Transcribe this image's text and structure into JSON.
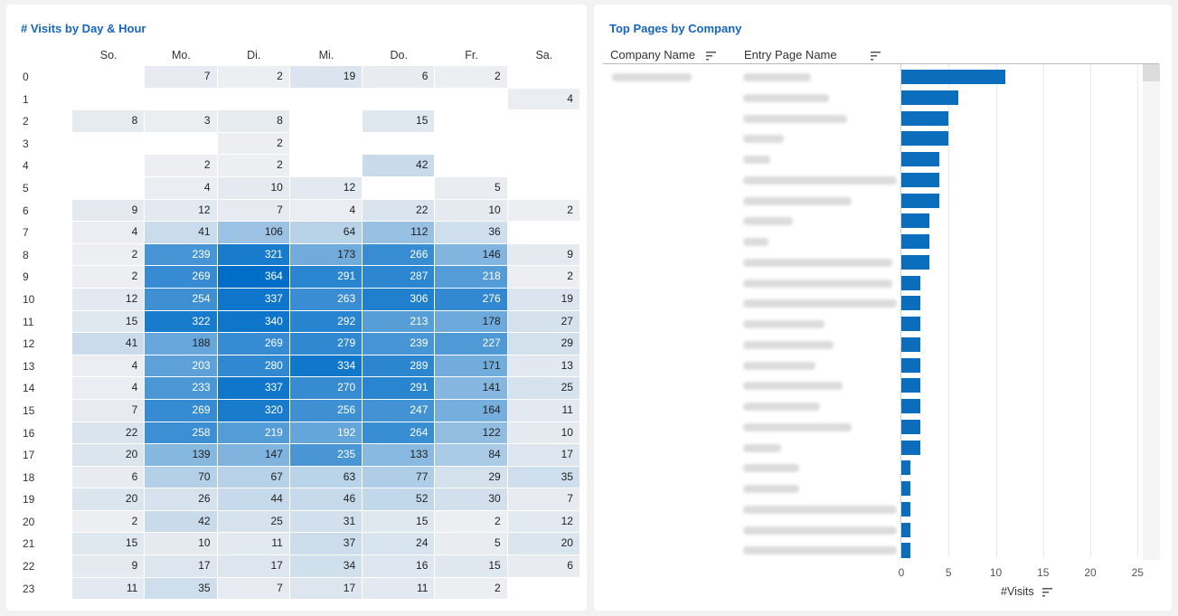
{
  "heatmap": {
    "title": "# Visits by Day & Hour",
    "days": [
      "So.",
      "Mo.",
      "Di.",
      "Mi.",
      "Do.",
      "Fr.",
      "Sa."
    ],
    "hours": [
      "0",
      "1",
      "2",
      "3",
      "4",
      "5",
      "6",
      "7",
      "8",
      "9",
      "10",
      "11",
      "12",
      "13",
      "14",
      "15",
      "16",
      "17",
      "18",
      "19",
      "20",
      "21",
      "22",
      "23"
    ],
    "values": [
      [
        null,
        7,
        2,
        19,
        6,
        2,
        null
      ],
      [
        null,
        null,
        null,
        null,
        null,
        null,
        4
      ],
      [
        8,
        3,
        8,
        null,
        15,
        null,
        null
      ],
      [
        null,
        null,
        2,
        null,
        null,
        null,
        null
      ],
      [
        null,
        2,
        2,
        null,
        42,
        null,
        null
      ],
      [
        null,
        4,
        10,
        12,
        null,
        5,
        null
      ],
      [
        9,
        12,
        7,
        4,
        22,
        10,
        2
      ],
      [
        4,
        41,
        106,
        64,
        112,
        36,
        null
      ],
      [
        2,
        239,
        321,
        173,
        266,
        146,
        9
      ],
      [
        2,
        269,
        364,
        291,
        287,
        218,
        2
      ],
      [
        12,
        254,
        337,
        263,
        306,
        276,
        19
      ],
      [
        15,
        322,
        340,
        292,
        213,
        178,
        27
      ],
      [
        41,
        188,
        269,
        279,
        239,
        227,
        29
      ],
      [
        4,
        203,
        280,
        334,
        289,
        171,
        13
      ],
      [
        4,
        233,
        337,
        270,
        291,
        141,
        25
      ],
      [
        7,
        269,
        320,
        256,
        247,
        164,
        11
      ],
      [
        22,
        258,
        219,
        192,
        264,
        122,
        10
      ],
      [
        20,
        139,
        147,
        235,
        133,
        84,
        17
      ],
      [
        6,
        70,
        67,
        63,
        77,
        29,
        35
      ],
      [
        20,
        26,
        44,
        46,
        52,
        30,
        7
      ],
      [
        2,
        42,
        25,
        31,
        15,
        2,
        12
      ],
      [
        15,
        10,
        11,
        37,
        24,
        5,
        20
      ],
      [
        9,
        17,
        17,
        34,
        16,
        15,
        6
      ],
      [
        11,
        35,
        7,
        17,
        11,
        2,
        null
      ]
    ]
  },
  "top_pages": {
    "title": "Top Pages by Company",
    "col_company": "Company Name",
    "col_entry": "Entry Page Name",
    "axis_label": "#Visits",
    "x_ticks": [
      "0",
      "5",
      "10",
      "15",
      "20",
      "25"
    ],
    "bar_color": "#0a6ebd",
    "visits": [
      11,
      6,
      5,
      5,
      4,
      4,
      4,
      3,
      3,
      3,
      2,
      2,
      2,
      2,
      2,
      2,
      2,
      2,
      2,
      1,
      1,
      1,
      1,
      1
    ]
  },
  "chart_data": {
    "type": "bar",
    "orientation": "horizontal",
    "title": "Top Pages by Company",
    "xlabel": "#Visits",
    "xlim": [
      0,
      25
    ],
    "values": [
      11,
      6,
      5,
      5,
      4,
      4,
      4,
      3,
      3,
      3,
      2,
      2,
      2,
      2,
      2,
      2,
      2,
      2,
      2,
      1,
      1,
      1,
      1,
      1
    ]
  }
}
